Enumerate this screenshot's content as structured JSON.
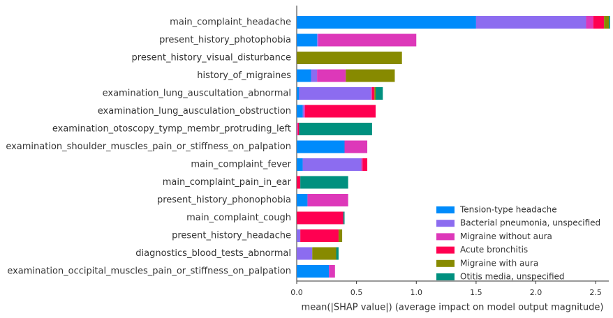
{
  "chart_data": {
    "type": "stacked-barh",
    "xlabel": "mean(|SHAP value|) (average impact on model output magnitude)",
    "categories": [
      "main_complaint_headache",
      "present_history_photophobia",
      "present_history_visual_disturbance",
      "history_of_migraines",
      "examination_lung_auscultation_abnormal",
      "examination_lung_ausculation_obstruction",
      "examination_otoscopy_tymp_membr_protruding_left",
      "examination_shoulder_muscles_pain_or_stiffness_on_palpation",
      "main_complaint_fever",
      "main_complaint_pain_in_ear",
      "present_history_phonophobia",
      "main_complaint_cough",
      "present_history_headache",
      "diagnostics_blood_tests_abnormal",
      "examination_occipital_muscles_pain_or_stiffness_on_palpation"
    ],
    "series": [
      {
        "name": "Tension-type headache",
        "color": "#008bfb",
        "values": [
          1.5,
          0.17,
          0,
          0.12,
          0.02,
          0.05,
          0,
          0.4,
          0.05,
          0,
          0.09,
          0,
          0,
          0,
          0.27
        ]
      },
      {
        "name": "Bacterial pneumonia, unspecified",
        "color": "#8c6cf0",
        "values": [
          0.92,
          0.01,
          0,
          0.05,
          0.6,
          0.01,
          0,
          0,
          0.49,
          0,
          0,
          0,
          0.03,
          0.13,
          0
        ]
      },
      {
        "name": "Migraine without aura",
        "color": "#dd38b9",
        "values": [
          0.06,
          0.82,
          0,
          0.24,
          0.01,
          0.01,
          0.01,
          0.19,
          0.01,
          0,
          0.34,
          0,
          0,
          0,
          0.05
        ]
      },
      {
        "name": "Acute bronchitis",
        "color": "#ff0051",
        "values": [
          0.09,
          0,
          0,
          0,
          0.02,
          0.59,
          0.01,
          0,
          0.04,
          0.03,
          0,
          0.39,
          0.32,
          0,
          0
        ]
      },
      {
        "name": "Migraine with aura",
        "color": "#878a00",
        "values": [
          0.04,
          0,
          0.88,
          0.41,
          0.01,
          0,
          0,
          0,
          0,
          0,
          0,
          0,
          0.03,
          0.2,
          0
        ]
      },
      {
        "name": "Otitis media, unspecified",
        "color": "#00907f",
        "values": [
          0.01,
          0,
          0,
          0,
          0.06,
          0,
          0.61,
          0,
          0,
          0.4,
          0,
          0.01,
          0,
          0.02,
          0
        ]
      }
    ],
    "xlim": [
      0,
      2.61
    ],
    "xticks": [
      {
        "value": 0,
        "label": "0.0"
      },
      0.5,
      {
        "value": 1,
        "label": "1.0"
      },
      1.5,
      {
        "value": 2,
        "label": "2.0"
      },
      2.5
    ],
    "legend": "lower-right"
  }
}
